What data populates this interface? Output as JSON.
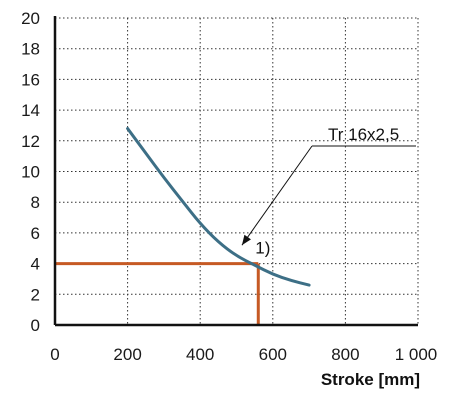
{
  "chart_data": {
    "type": "line",
    "title": "",
    "xlabel": "Stroke [mm]",
    "ylabel": "",
    "xlim": [
      0,
      1000
    ],
    "ylim": [
      0,
      20
    ],
    "x_ticks": [
      0,
      200,
      400,
      600,
      800,
      1000
    ],
    "x_tick_labels": [
      "0",
      "200",
      "400",
      "600",
      "800",
      "1 000"
    ],
    "y_ticks": [
      0,
      2,
      4,
      6,
      8,
      10,
      12,
      14,
      16,
      18,
      20
    ],
    "y_tick_labels": [
      "0",
      "2",
      "4",
      "6",
      "8",
      "10",
      "12",
      "14",
      "16",
      "18",
      "20"
    ],
    "grid": true,
    "series": [
      {
        "name": "Tr 16x2,5",
        "color": "#3d6f86",
        "x": [
          200,
          250,
          300,
          350,
          400,
          450,
          500,
          550,
          600,
          650,
          700
        ],
        "y": [
          12.8,
          11.2,
          9.6,
          8.1,
          6.6,
          5.4,
          4.5,
          3.9,
          3.3,
          2.9,
          2.6
        ]
      }
    ],
    "reference_lines": {
      "color": "#c65a24",
      "x": 560,
      "y": 4
    },
    "annotations": [
      {
        "text": "Tr 16x2,5",
        "points_to": {
          "x": 515,
          "y": 5.2
        }
      },
      {
        "text": "1)",
        "near": {
          "x": 560,
          "y": 4
        }
      }
    ]
  }
}
